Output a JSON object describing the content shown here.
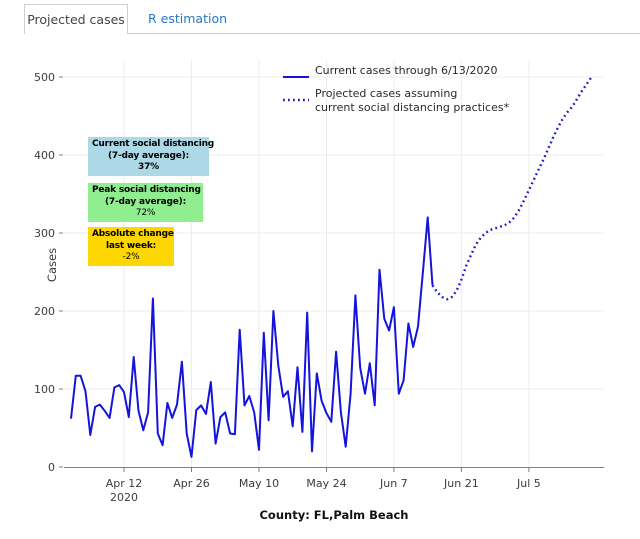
{
  "tabs": {
    "projected": {
      "label": "Projected cases"
    },
    "r_estimation": {
      "label": "R estimation"
    }
  },
  "legend": {
    "current": "Current cases through 6/13/2020",
    "projected_line1": "Projected cases assuming",
    "projected_line2": "current social distancing practices*"
  },
  "info_boxes": {
    "current": {
      "line1": "Current social distancing",
      "line2": "(7-day average):",
      "value": "37%",
      "bg": "#ADD8E6"
    },
    "peak": {
      "line1": "Peak social distancing",
      "line2": "(7-day average):",
      "value": "72%",
      "bg": "#90EE90"
    },
    "change": {
      "line1": "Absolute change",
      "line2": "last week:",
      "value": "-2%",
      "bg": "#FFD700"
    }
  },
  "chart_data": {
    "type": "line",
    "title": "",
    "xlabel": "County: FL,Palm Beach",
    "ylabel": "Cases",
    "ylim": [
      0,
      500
    ],
    "yticks": [
      0,
      100,
      200,
      300,
      400,
      500
    ],
    "grid": true,
    "legend_position": "top-right",
    "x_start_date": "2020-04-01",
    "xticks": [
      {
        "day": 11,
        "label": "Apr 12",
        "sub": "2020"
      },
      {
        "day": 25,
        "label": "Apr 26"
      },
      {
        "day": 39,
        "label": "May 10"
      },
      {
        "day": 53,
        "label": "May 24"
      },
      {
        "day": 67,
        "label": "Jun 7"
      },
      {
        "day": 81,
        "label": "Jun 21"
      },
      {
        "day": 95,
        "label": "Jul 5"
      }
    ],
    "colors": {
      "line": "#1414dc",
      "projected_line": "#1d1dbe"
    },
    "series": [
      {
        "name": "Current cases through 6/13/2020",
        "style": "solid",
        "start_day": 0,
        "values": [
          62,
          117,
          117,
          97,
          41,
          77,
          80,
          72,
          63,
          102,
          105,
          96,
          64,
          141,
          72,
          47,
          70,
          216,
          43,
          28,
          82,
          63,
          80,
          135,
          43,
          13,
          73,
          79,
          68,
          109,
          30,
          64,
          70,
          43,
          42,
          176,
          79,
          91,
          70,
          22,
          172,
          60,
          200,
          130,
          90,
          97,
          52,
          128,
          45,
          198,
          20,
          120,
          85,
          69,
          58,
          148,
          70,
          26,
          94,
          220,
          127,
          94,
          133,
          79,
          253,
          190,
          175,
          205,
          94,
          111,
          184,
          154,
          180,
          250,
          320,
          233
        ]
      },
      {
        "name": "Projected cases assuming current social distancing practices*",
        "style": "dotted",
        "start_day": 75,
        "values": [
          233,
          224,
          218,
          215,
          218,
          226,
          240,
          258,
          272,
          285,
          294,
          300,
          304,
          306,
          308,
          310,
          314,
          320,
          330,
          342,
          355,
          368,
          381,
          394,
          408,
          422,
          435,
          446,
          455,
          462,
          472,
          482,
          491,
          500
        ]
      }
    ]
  }
}
